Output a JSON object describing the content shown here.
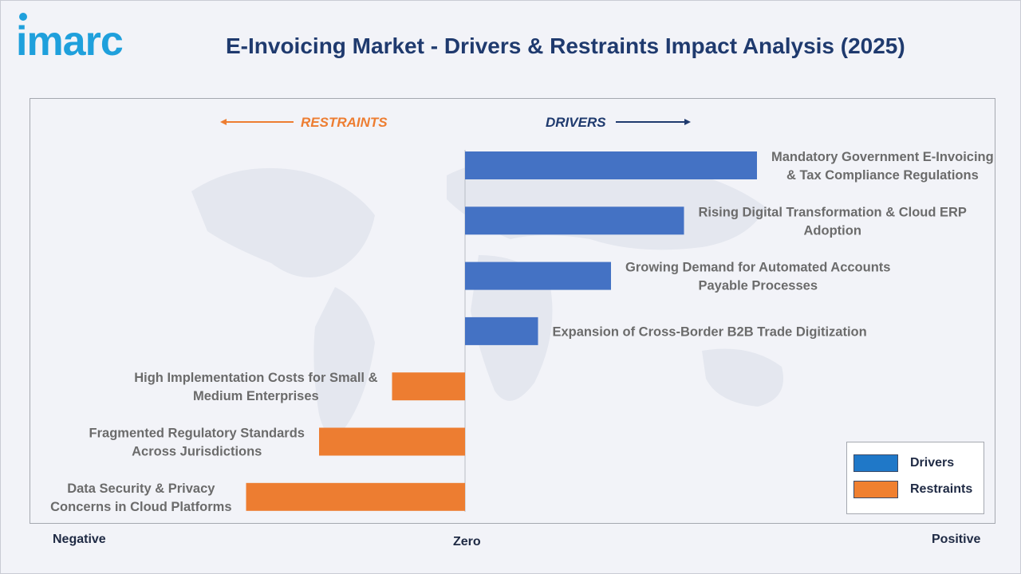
{
  "header": {
    "logo_text": "imarc",
    "title": "E-Invoicing Market - Drivers & Restraints Impact Analysis (2025)"
  },
  "axis": {
    "negative_label": "Negative",
    "zero_label": "Zero",
    "positive_label": "Positive"
  },
  "direction_labels": {
    "restraints": "RESTRAINTS",
    "drivers": "DRIVERS"
  },
  "legend": {
    "items": [
      {
        "label": "Drivers",
        "color": "#1f78c8"
      },
      {
        "label": "Restraints",
        "color": "#f08030"
      }
    ]
  },
  "colors": {
    "drivers": "#4472c4",
    "restraints": "#ed7d31",
    "restraints_text": "#ed7d31",
    "drivers_text": "#1f3a6e"
  },
  "chart_data": {
    "type": "bar",
    "orientation": "horizontal",
    "x_range": [
      -3,
      4
    ],
    "categories": [
      "Mandatory Government E-Invoicing & Tax Compliance Regulations",
      "Rising Digital Transformation & Cloud ERP Adoption",
      "Growing Demand for Automated Accounts Payable Processes",
      "Expansion of Cross-Border B2B Trade Digitization",
      "High Implementation Costs for Small & Medium Enterprises",
      "Fragmented Regulatory Standards Across Jurisdictions",
      "Data Security & Privacy Concerns in Cloud Platforms"
    ],
    "label_lines": [
      [
        "Mandatory Government E-Invoicing",
        "& Tax Compliance Regulations"
      ],
      [
        "Rising Digital Transformation & Cloud ERP",
        "Adoption"
      ],
      [
        "Growing Demand for Automated Accounts",
        "Payable Processes"
      ],
      [
        "Expansion of Cross-Border B2B Trade Digitization"
      ],
      [
        "High Implementation Costs for Small &",
        "Medium Enterprises"
      ],
      [
        "Fragmented Regulatory Standards",
        "Across Jurisdictions"
      ],
      [
        "Data Security & Privacy",
        "Concerns in Cloud Platforms"
      ]
    ],
    "values": [
      4,
      3,
      2,
      1,
      -1,
      -2,
      -3
    ],
    "series_group": [
      "Drivers",
      "Drivers",
      "Drivers",
      "Drivers",
      "Restraints",
      "Restraints",
      "Restraints"
    ]
  }
}
